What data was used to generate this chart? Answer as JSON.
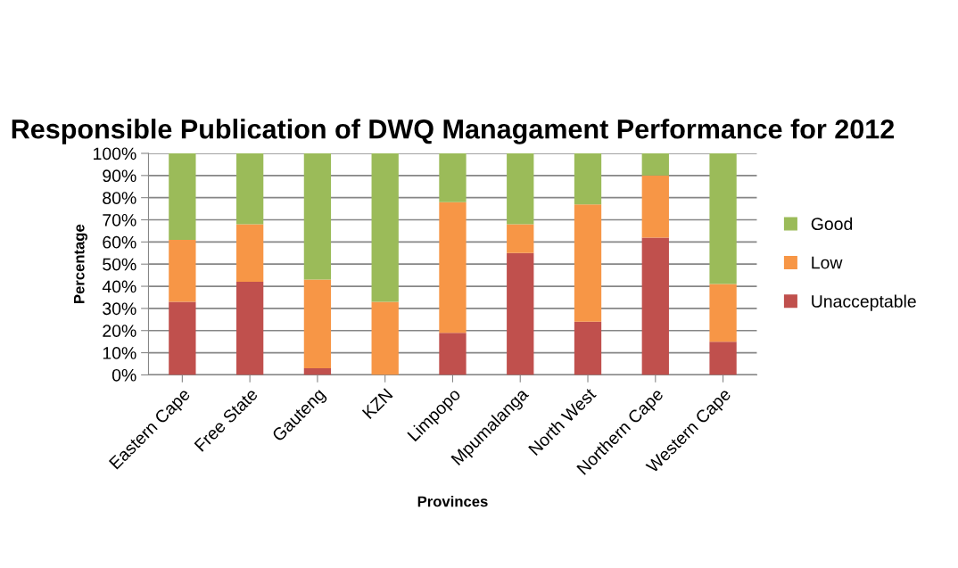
{
  "chart_data": {
    "type": "bar",
    "stacked": true,
    "title": "Responsible Publication of DWQ Managament Performance for 2012",
    "xlabel": "Provinces",
    "ylabel": "Percentage",
    "categories": [
      "Eastern Cape",
      "Free State",
      "Gauteng",
      "KZN",
      "Limpopo",
      "Mpumalanga",
      "North West",
      "Northern Cape",
      "Western Cape"
    ],
    "series": [
      {
        "name": "Unacceptable",
        "color": "#c0504d",
        "values": [
          33,
          42,
          3,
          0,
          19,
          55,
          24,
          62,
          15
        ]
      },
      {
        "name": "Low",
        "color": "#f79646",
        "values": [
          28,
          26,
          40,
          33,
          59,
          13,
          53,
          28,
          26
        ]
      },
      {
        "name": "Good",
        "color": "#9bbb59",
        "values": [
          39,
          32,
          57,
          67,
          22,
          32,
          23,
          10,
          59
        ]
      }
    ],
    "ylim": [
      0,
      100
    ],
    "yticks": [
      {
        "value": 0,
        "label": "0%"
      },
      {
        "value": 10,
        "label": "10%"
      },
      {
        "value": 20,
        "label": "20%"
      },
      {
        "value": 30,
        "label": "30%"
      },
      {
        "value": 40,
        "label": "40%"
      },
      {
        "value": 50,
        "label": "50%"
      },
      {
        "value": 60,
        "label": "60%"
      },
      {
        "value": 70,
        "label": "70%"
      },
      {
        "value": 80,
        "label": "80%"
      },
      {
        "value": 90,
        "label": "90%"
      },
      {
        "value": 100,
        "label": "100%"
      }
    ],
    "grid": "y",
    "legend": "right"
  }
}
